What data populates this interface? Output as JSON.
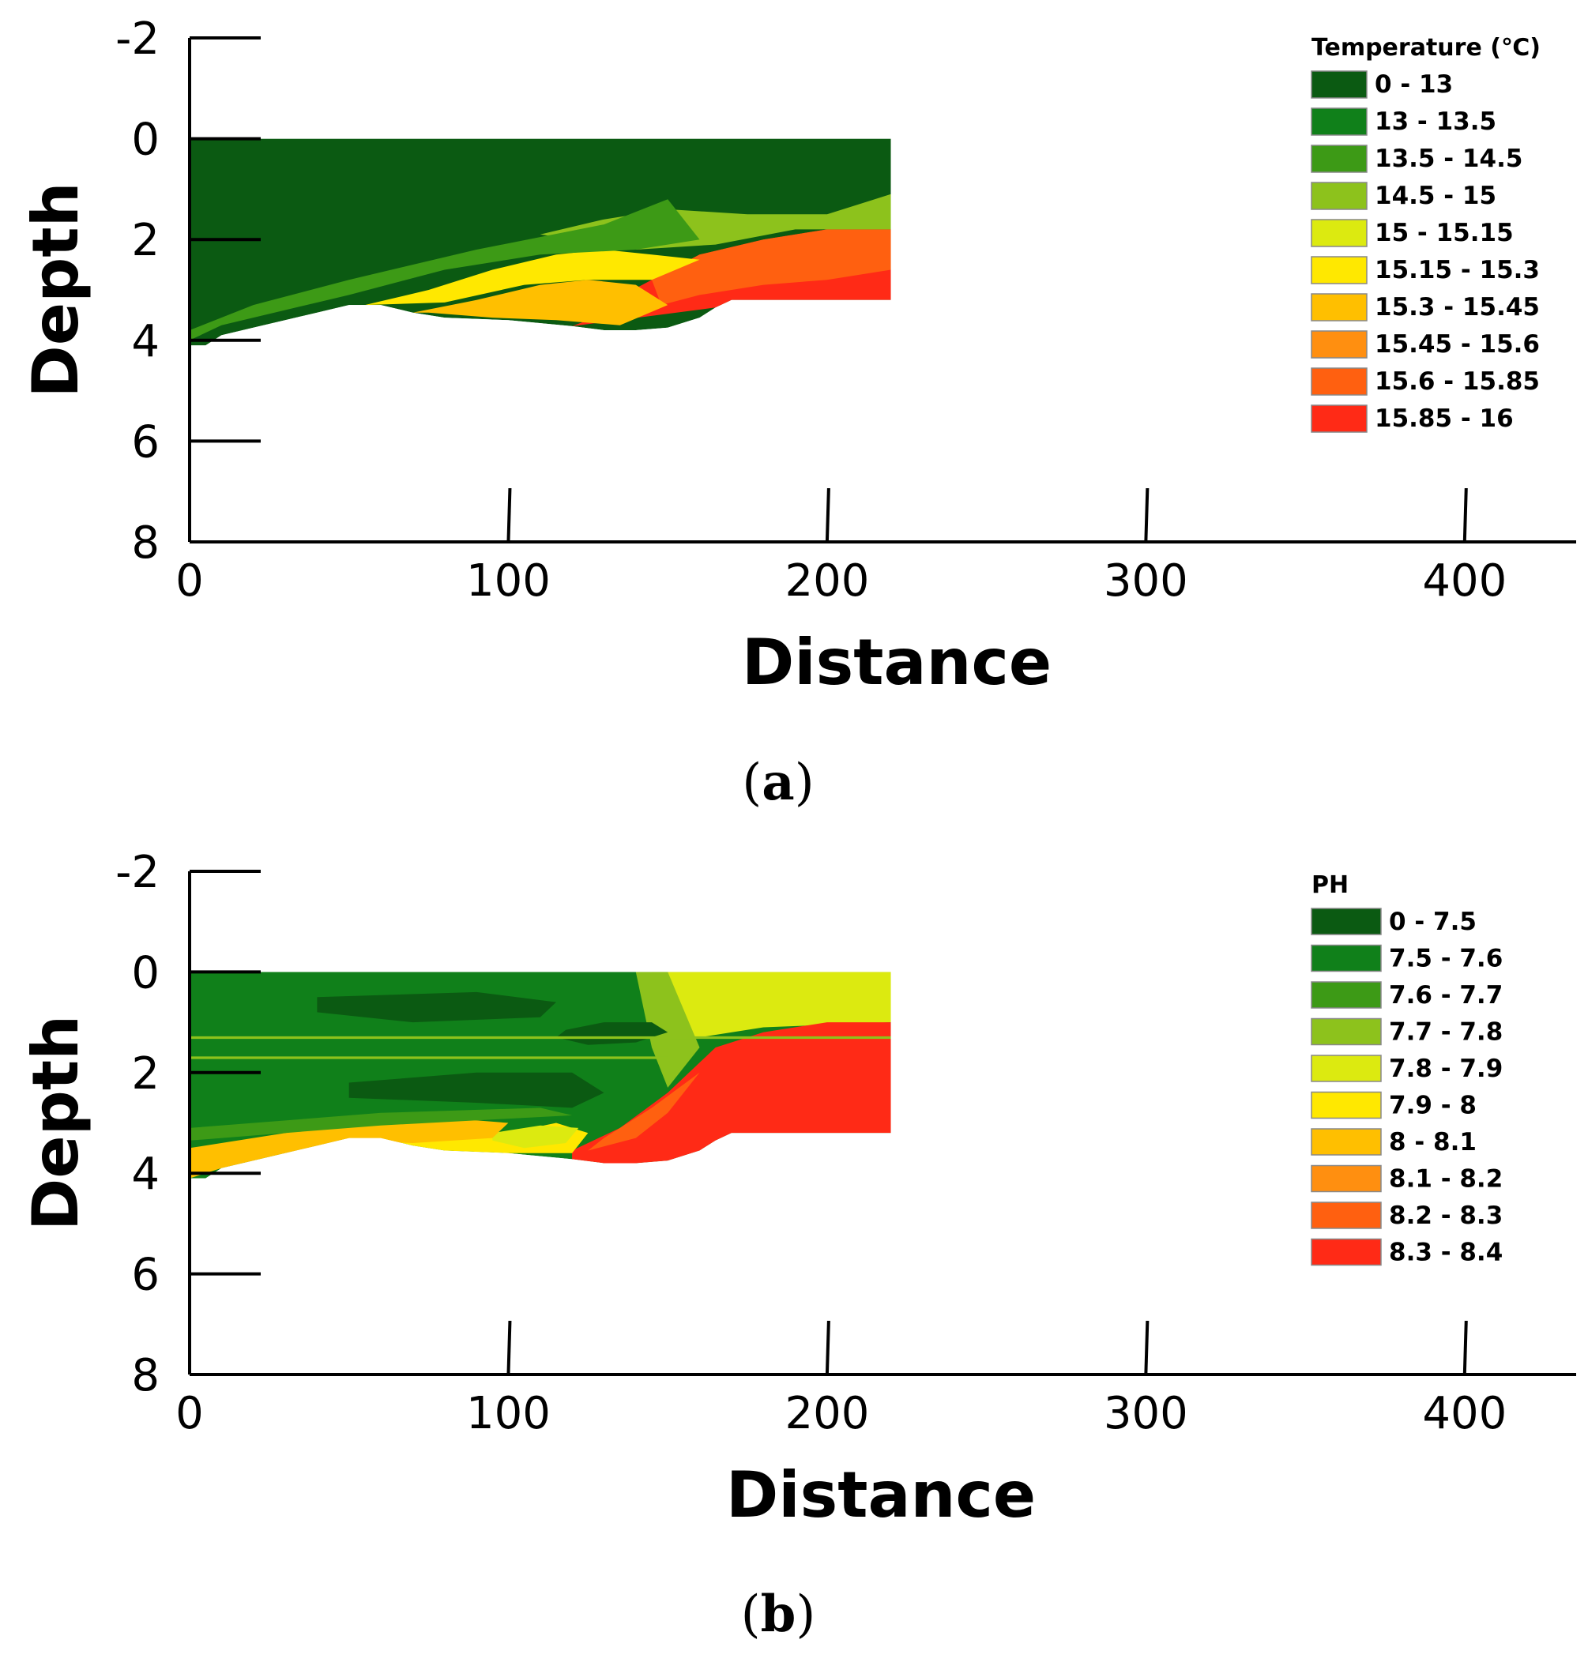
{
  "chart_data": [
    {
      "type": "heatmap",
      "panel": "a",
      "caption_letter": "a",
      "xlabel": "Distance",
      "ylabel": "Depth",
      "xlim": [
        0,
        435
      ],
      "ylim": [
        8,
        -2
      ],
      "xticks": [
        0,
        100,
        200,
        300,
        400
      ],
      "xtick_labels": [
        "0",
        "100",
        "200",
        "300",
        "400"
      ],
      "yticks": [
        -2,
        0,
        2,
        4,
        6,
        8
      ],
      "ytick_labels": [
        "-2",
        "0",
        "2",
        "4",
        "6",
        "8"
      ],
      "legend_title": "Temperature (℃)",
      "legend": [
        {
          "label": "0 - 13",
          "color": "#0b5a12"
        },
        {
          "label": "13 - 13.5",
          "color": "#10801a"
        },
        {
          "label": "13.5 - 14.5",
          "color": "#3d9a16"
        },
        {
          "label": "14.5 - 15",
          "color": "#8dc21c"
        },
        {
          "label": "15 - 15.15",
          "color": "#dcea10"
        },
        {
          "label": "15.15 - 15.3",
          "color": "#ffe800"
        },
        {
          "label": "15.3 - 15.45",
          "color": "#ffbf00"
        },
        {
          "label": "15.45 - 15.6",
          "color": "#ff8f10"
        },
        {
          "label": "15.6 - 15.85",
          "color": "#ff6010"
        },
        {
          "label": "15.85 - 16",
          "color": "#ff2a16"
        }
      ],
      "domain_outline": {
        "x": [
          0,
          220,
          220,
          170,
          165,
          160,
          150,
          140,
          130,
          120,
          100,
          80,
          70,
          60,
          50,
          40,
          30,
          20,
          10,
          5,
          0
        ],
        "depth": [
          0,
          0,
          3.2,
          3.2,
          3.35,
          3.55,
          3.75,
          3.8,
          3.8,
          3.72,
          3.6,
          3.55,
          3.45,
          3.3,
          3.3,
          3.45,
          3.6,
          3.75,
          3.9,
          4.1,
          4.1
        ]
      },
      "zones": [
        {
          "class": 9,
          "x": [
            120,
            165,
            170,
            220,
            220,
            200,
            180,
            160,
            145,
            130,
            125
          ],
          "depth": [
            3.72,
            3.35,
            3.2,
            3.2,
            1.8,
            1.8,
            2.0,
            2.3,
            2.8,
            3.3,
            3.6
          ]
        },
        {
          "class": 8,
          "x": [
            145,
            160,
            180,
            200,
            220,
            220,
            200,
            180,
            160,
            148
          ],
          "depth": [
            2.8,
            2.3,
            2.0,
            1.8,
            1.8,
            2.6,
            2.8,
            2.9,
            3.1,
            3.3
          ]
        },
        {
          "class": 6,
          "x": [
            70,
            90,
            110,
            125,
            140,
            150,
            135,
            115,
            95,
            75
          ],
          "depth": [
            3.45,
            3.2,
            2.9,
            2.8,
            2.9,
            3.3,
            3.7,
            3.6,
            3.55,
            3.45
          ]
        },
        {
          "class": 5,
          "x": [
            55,
            75,
            95,
            115,
            130,
            145,
            160,
            145,
            125,
            105,
            80
          ],
          "depth": [
            3.3,
            3.0,
            2.6,
            2.3,
            2.2,
            2.3,
            2.4,
            2.8,
            2.8,
            2.9,
            3.25
          ]
        },
        {
          "class": 3,
          "x": [
            110,
            130,
            150,
            175,
            200,
            220,
            220,
            190,
            165,
            140
          ],
          "depth": [
            1.9,
            1.6,
            1.4,
            1.5,
            1.5,
            1.1,
            1.8,
            1.8,
            2.1,
            2.2
          ]
        },
        {
          "class": 2,
          "x": [
            0,
            20,
            50,
            90,
            130,
            150,
            160,
            140,
            110,
            80,
            50,
            30,
            10,
            0
          ],
          "depth": [
            3.8,
            3.3,
            2.8,
            2.2,
            1.7,
            1.2,
            2.0,
            2.2,
            2.3,
            2.6,
            3.1,
            3.4,
            3.7,
            4.0
          ]
        }
      ]
    },
    {
      "type": "heatmap",
      "panel": "b",
      "caption_letter": "b",
      "xlabel": "Distance",
      "ylabel": "Depth",
      "xlim": [
        0,
        435
      ],
      "ylim": [
        8,
        -2
      ],
      "xticks": [
        0,
        100,
        200,
        300,
        400
      ],
      "xtick_labels": [
        "0",
        "100",
        "200",
        "300",
        "400"
      ],
      "yticks": [
        -2,
        0,
        2,
        4,
        6,
        8
      ],
      "ytick_labels": [
        "-2",
        "0",
        "2",
        "4",
        "6",
        "8"
      ],
      "legend_title": "PH",
      "legend": [
        {
          "label": "0 - 7.5",
          "color": "#0b5a12"
        },
        {
          "label": "7.5 - 7.6",
          "color": "#10801a"
        },
        {
          "label": "7.6 - 7.7",
          "color": "#3d9a16"
        },
        {
          "label": "7.7 - 7.8",
          "color": "#8dc21c"
        },
        {
          "label": "7.8 - 7.9",
          "color": "#dcea10"
        },
        {
          "label": "7.9 - 8",
          "color": "#ffe800"
        },
        {
          "label": "8 - 8.1",
          "color": "#ffbf00"
        },
        {
          "label": "8.1 - 8.2",
          "color": "#ff8f10"
        },
        {
          "label": "8.2 - 8.3",
          "color": "#ff6010"
        },
        {
          "label": "8.3 - 8.4",
          "color": "#ff2a16"
        }
      ],
      "domain_outline": {
        "x": [
          0,
          220,
          220,
          170,
          165,
          160,
          150,
          140,
          130,
          120,
          100,
          80,
          70,
          60,
          50,
          40,
          30,
          20,
          10,
          5,
          0
        ],
        "depth": [
          0,
          0,
          3.2,
          3.2,
          3.35,
          3.55,
          3.75,
          3.8,
          3.8,
          3.72,
          3.6,
          3.55,
          3.45,
          3.3,
          3.3,
          3.45,
          3.6,
          3.75,
          3.9,
          4.1,
          4.1
        ]
      },
      "background_class": 1,
      "zones": [
        {
          "class": 4,
          "x": [
            145,
            220,
            220,
            180,
            160,
            150
          ],
          "depth": [
            0,
            0,
            1.0,
            1.1,
            1.3,
            1.2
          ]
        },
        {
          "class": 3,
          "x": [
            140,
            150,
            160,
            150,
            145
          ],
          "depth": [
            0,
            0,
            1.5,
            2.3,
            1.5
          ]
        },
        {
          "class": 9,
          "x": [
            120,
            135,
            150,
            165,
            180,
            200,
            220,
            220,
            170,
            165,
            160,
            150,
            140,
            130,
            120
          ],
          "depth": [
            3.55,
            3.1,
            2.4,
            1.5,
            1.2,
            1.0,
            1.0,
            3.2,
            3.2,
            3.35,
            3.55,
            3.75,
            3.8,
            3.8,
            3.72
          ]
        },
        {
          "class": 8,
          "x": [
            130,
            145,
            160,
            150,
            140,
            125
          ],
          "depth": [
            3.3,
            2.7,
            2.0,
            2.8,
            3.3,
            3.55
          ]
        },
        {
          "class": 5,
          "x": [
            60,
            80,
            100,
            115,
            125,
            120,
            100,
            80,
            70
          ],
          "depth": [
            3.3,
            3.2,
            3.2,
            3.0,
            3.2,
            3.6,
            3.6,
            3.55,
            3.45
          ]
        },
        {
          "class": 4,
          "x": [
            95,
            110,
            122,
            118,
            105,
            95
          ],
          "depth": [
            3.2,
            3.05,
            3.1,
            3.4,
            3.5,
            3.35
          ]
        },
        {
          "class": 6,
          "x": [
            0,
            20,
            40,
            60,
            80,
            100,
            95,
            70,
            50,
            30,
            10,
            0
          ],
          "depth": [
            3.5,
            3.3,
            3.1,
            3.0,
            2.9,
            3.0,
            3.3,
            3.4,
            3.35,
            3.6,
            3.9,
            4.1
          ]
        },
        {
          "class": 2,
          "x": [
            0,
            60,
            110,
            120,
            60,
            0
          ],
          "depth": [
            3.1,
            2.8,
            2.7,
            2.85,
            3.05,
            3.35
          ]
        },
        {
          "class": 0,
          "x": [
            50,
            90,
            120,
            130,
            120,
            90,
            50
          ],
          "depth": [
            2.2,
            2.0,
            2.0,
            2.4,
            2.7,
            2.6,
            2.5
          ]
        },
        {
          "class": 0,
          "x": [
            40,
            90,
            115,
            110,
            70,
            40
          ],
          "depth": [
            0.5,
            0.4,
            0.6,
            0.9,
            1.0,
            0.8
          ]
        },
        {
          "class": 0,
          "x": [
            118,
            130,
            145,
            150,
            140,
            125,
            115
          ],
          "depth": [
            1.15,
            1.0,
            1.0,
            1.2,
            1.4,
            1.45,
            1.3
          ]
        },
        {
          "class": 3,
          "x": [
            0,
            220,
            220,
            0
          ],
          "depth": [
            1.28,
            1.28,
            1.33,
            1.33
          ]
        },
        {
          "class": 3,
          "x": [
            0,
            150,
            150,
            0
          ],
          "depth": [
            1.68,
            1.68,
            1.73,
            1.73
          ]
        }
      ]
    }
  ]
}
